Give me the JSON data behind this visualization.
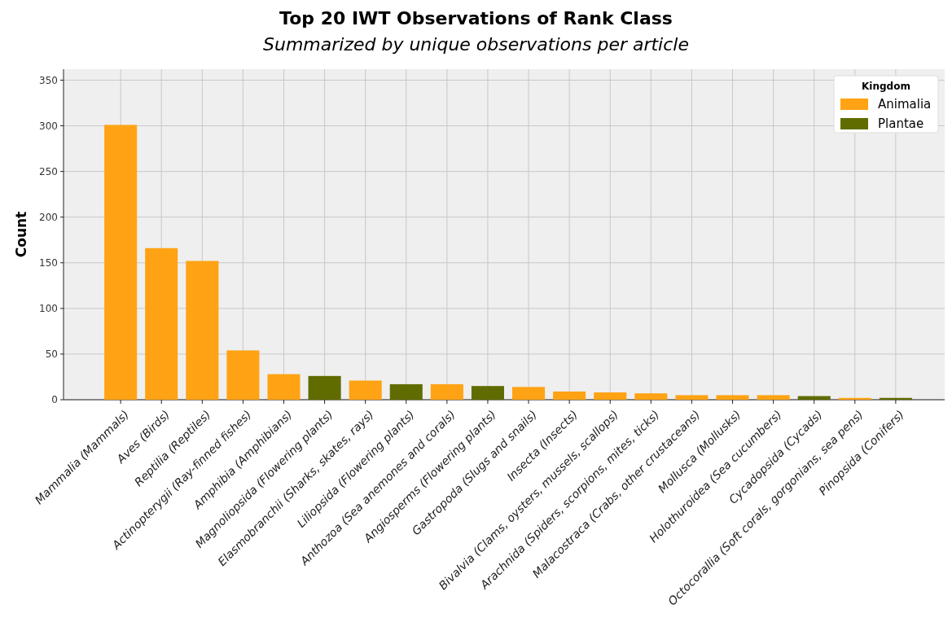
{
  "chart_data": {
    "type": "bar",
    "title": "Top 20 IWT Observations of Rank Class",
    "subtitle": "Summarized by unique observations per article",
    "ylabel": "Count",
    "legend_title": "Kingdom",
    "categories": [
      "Mammalia (Mammals)",
      "Aves (Birds)",
      "Reptilia (Reptiles)",
      "Actinopterygii (Ray-finned fishes)",
      "Amphibia (Amphibians)",
      "Magnoliopsida (Flowering plants)",
      "Elasmobranchii (Sharks, skates, rays)",
      "Liliopsida (Flowering plants)",
      "Anthozoa (Sea anemones and corals)",
      "Angiosperms (Flowering plants)",
      "Gastropoda (Slugs and snails)",
      "Insecta (Insects)",
      "Bivalvia (Clams, oysters, mussels, scallops)",
      "Arachnida (Spiders, scorpions, mites, ticks)",
      "Malacostraca (Crabs, other crustaceans)",
      "Mollusca (Mollusks)",
      "Holothuroidea (Sea cucumbers)",
      "Cycadopsida (Cycads)",
      "Octocorallia (Soft corals, gorgonians, sea pens)",
      "Pinopsida (Conifers)"
    ],
    "series": [
      {
        "name": "Animalia",
        "color": "#ffa314",
        "values": [
          301,
          166,
          152,
          54,
          28,
          null,
          21,
          null,
          17,
          null,
          14,
          9,
          8,
          7,
          5,
          5,
          5,
          null,
          2,
          null
        ]
      },
      {
        "name": "Plantae",
        "color": "#606c00",
        "values": [
          null,
          null,
          null,
          null,
          null,
          26,
          null,
          17,
          null,
          15,
          null,
          null,
          null,
          null,
          null,
          null,
          null,
          4,
          null,
          2
        ]
      }
    ],
    "stacked": true,
    "ylim": [
      0,
      362
    ],
    "yticks": [
      0,
      50,
      100,
      150,
      200,
      250,
      300,
      350
    ],
    "grid": true,
    "legend": "top right"
  }
}
